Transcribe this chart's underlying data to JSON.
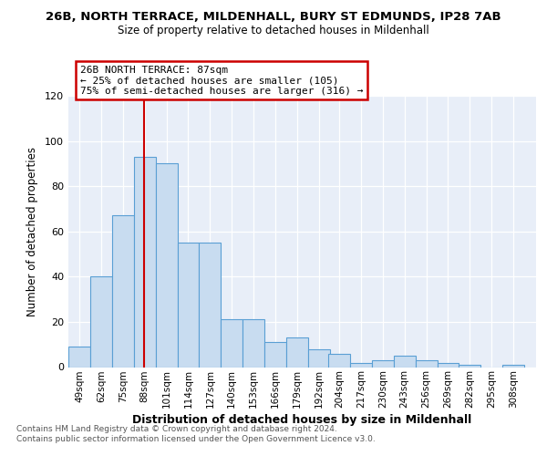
{
  "title": "26B, NORTH TERRACE, MILDENHALL, BURY ST EDMUNDS, IP28 7AB",
  "subtitle": "Size of property relative to detached houses in Mildenhall",
  "xlabel": "Distribution of detached houses by size in Mildenhall",
  "ylabel": "Number of detached properties",
  "bin_labels": [
    "49sqm",
    "62sqm",
    "75sqm",
    "88sqm",
    "101sqm",
    "114sqm",
    "127sqm",
    "140sqm",
    "153sqm",
    "166sqm",
    "179sqm",
    "192sqm",
    "204sqm",
    "217sqm",
    "230sqm",
    "243sqm",
    "256sqm",
    "269sqm",
    "282sqm",
    "295sqm",
    "308sqm"
  ],
  "bar_heights": [
    9,
    40,
    67,
    93,
    90,
    55,
    55,
    21,
    21,
    11,
    13,
    8,
    6,
    2,
    3,
    5,
    3,
    2,
    1,
    0,
    1
  ],
  "bar_color": "#c8dcf0",
  "bar_edge_color": "#5a9fd4",
  "vline_x": 87.5,
  "vline_color": "#cc0000",
  "annotation_title": "26B NORTH TERRACE: 87sqm",
  "annotation_line1": "← 25% of detached houses are smaller (105)",
  "annotation_line2": "75% of semi-detached houses are larger (316) →",
  "annotation_box_color": "#ffffff",
  "annotation_box_edge": "#cc0000",
  "ylim": [
    0,
    120
  ],
  "yticks": [
    0,
    20,
    40,
    60,
    80,
    100,
    120
  ],
  "footer1": "Contains HM Land Registry data © Crown copyright and database right 2024.",
  "footer2": "Contains public sector information licensed under the Open Government Licence v3.0.",
  "bg_color": "#ffffff",
  "plot_bg_color": "#e8eef8"
}
